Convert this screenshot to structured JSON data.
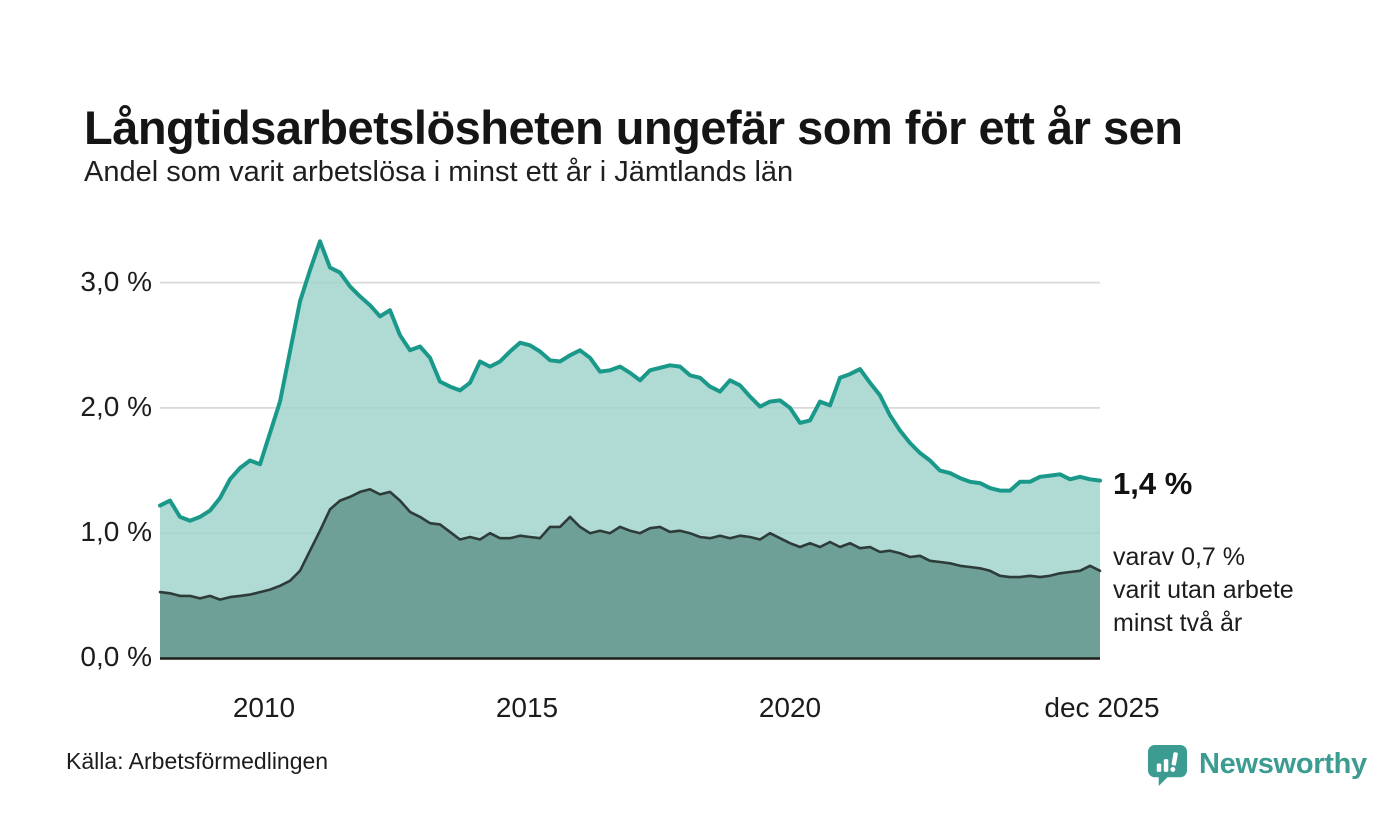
{
  "header": {
    "title": "Långtidsarbetslösheten ungefär som för ett år sen",
    "subtitle": "Andel som varit arbetslösa i minst ett år i Jämtlands län"
  },
  "annotations": {
    "latest_total": "1,4 %",
    "breakdown_line1": "varav 0,7 %",
    "breakdown_line2": "varit utan arbete",
    "breakdown_line3": "minst två år"
  },
  "source": {
    "label": "Källa: Arbetsförmedlingen"
  },
  "branding": {
    "name": "Newsworthy",
    "color": "#3d9c92",
    "icon": "newsworthy-speech-bubble-bars-icon"
  },
  "colors": {
    "series1_line": "#1a998b",
    "series1_fill": "#9fd2cb",
    "series2_line": "#2e3c39",
    "series2_fill": "#6b9d95",
    "gridline": "#d9d9d9",
    "axis": "#1d1d1b"
  },
  "chart_data": {
    "type": "area",
    "title": "Långtidsarbetslösheten ungefär som för ett år sen",
    "subtitle": "Andel som varit arbetslösa i minst ett år i Jämtlands län",
    "xlabel": "",
    "ylabel": "",
    "legend": "none",
    "grid": "horizontal",
    "ylim": [
      0,
      3.42
    ],
    "x_start_year": 2008.0,
    "x_end_year": 2025.92,
    "x_end_label": "dec 2025",
    "x_ticks": [
      {
        "label": "2010",
        "year": 2010
      },
      {
        "label": "2015",
        "year": 2015
      },
      {
        "label": "2020",
        "year": 2020
      },
      {
        "label": "dec 2025",
        "year": 2025.92
      }
    ],
    "y_ticks": [
      {
        "label": "0,0 %",
        "value": 0
      },
      {
        "label": "1,0 %",
        "value": 1
      },
      {
        "label": "2,0 %",
        "value": 2
      },
      {
        "label": "3,0 %",
        "value": 3
      }
    ],
    "unit": "%",
    "series": [
      {
        "name": "Andel som varit arbetslösa i minst ett år",
        "latest_value_label": "1,4 %",
        "color": "#1a998b",
        "fill": "#9fd2cb",
        "values": [
          1.22,
          1.26,
          1.13,
          1.1,
          1.13,
          1.18,
          1.28,
          1.43,
          1.52,
          1.58,
          1.55,
          1.8,
          2.05,
          2.45,
          2.85,
          3.1,
          3.33,
          3.12,
          3.08,
          2.97,
          2.89,
          2.82,
          2.73,
          2.78,
          2.58,
          2.46,
          2.49,
          2.4,
          2.21,
          2.17,
          2.14,
          2.2,
          2.37,
          2.33,
          2.37,
          2.45,
          2.52,
          2.5,
          2.45,
          2.38,
          2.37,
          2.42,
          2.46,
          2.4,
          2.29,
          2.3,
          2.33,
          2.28,
          2.22,
          2.3,
          2.32,
          2.34,
          2.33,
          2.26,
          2.24,
          2.17,
          2.13,
          2.22,
          2.18,
          2.09,
          2.01,
          2.05,
          2.06,
          2.0,
          1.88,
          1.9,
          2.05,
          2.02,
          2.24,
          2.27,
          2.31,
          2.2,
          2.1,
          1.94,
          1.82,
          1.72,
          1.64,
          1.58,
          1.5,
          1.48,
          1.44,
          1.41,
          1.4,
          1.36,
          1.34,
          1.34,
          1.41,
          1.41,
          1.45,
          1.46,
          1.47,
          1.43,
          1.45,
          1.43,
          1.42
        ]
      },
      {
        "name": "varav varit utan arbete minst två år",
        "latest_value_label": "0,7 %",
        "color": "#2e3c39",
        "fill": "#6b9d95",
        "values": [
          0.53,
          0.52,
          0.5,
          0.5,
          0.48,
          0.5,
          0.47,
          0.49,
          0.5,
          0.51,
          0.53,
          0.55,
          0.58,
          0.62,
          0.7,
          0.86,
          1.02,
          1.19,
          1.26,
          1.29,
          1.33,
          1.35,
          1.31,
          1.33,
          1.26,
          1.17,
          1.13,
          1.08,
          1.07,
          1.01,
          0.95,
          0.97,
          0.95,
          1.0,
          0.96,
          0.96,
          0.98,
          0.97,
          0.96,
          1.05,
          1.05,
          1.13,
          1.05,
          1.0,
          1.02,
          1.0,
          1.05,
          1.02,
          1.0,
          1.04,
          1.05,
          1.01,
          1.02,
          1.0,
          0.97,
          0.96,
          0.98,
          0.96,
          0.98,
          0.97,
          0.95,
          1.0,
          0.96,
          0.92,
          0.89,
          0.92,
          0.89,
          0.93,
          0.89,
          0.92,
          0.88,
          0.89,
          0.85,
          0.86,
          0.84,
          0.81,
          0.82,
          0.78,
          0.77,
          0.76,
          0.74,
          0.73,
          0.72,
          0.7,
          0.66,
          0.65,
          0.65,
          0.66,
          0.65,
          0.66,
          0.68,
          0.69,
          0.7,
          0.74,
          0.7
        ]
      }
    ]
  }
}
